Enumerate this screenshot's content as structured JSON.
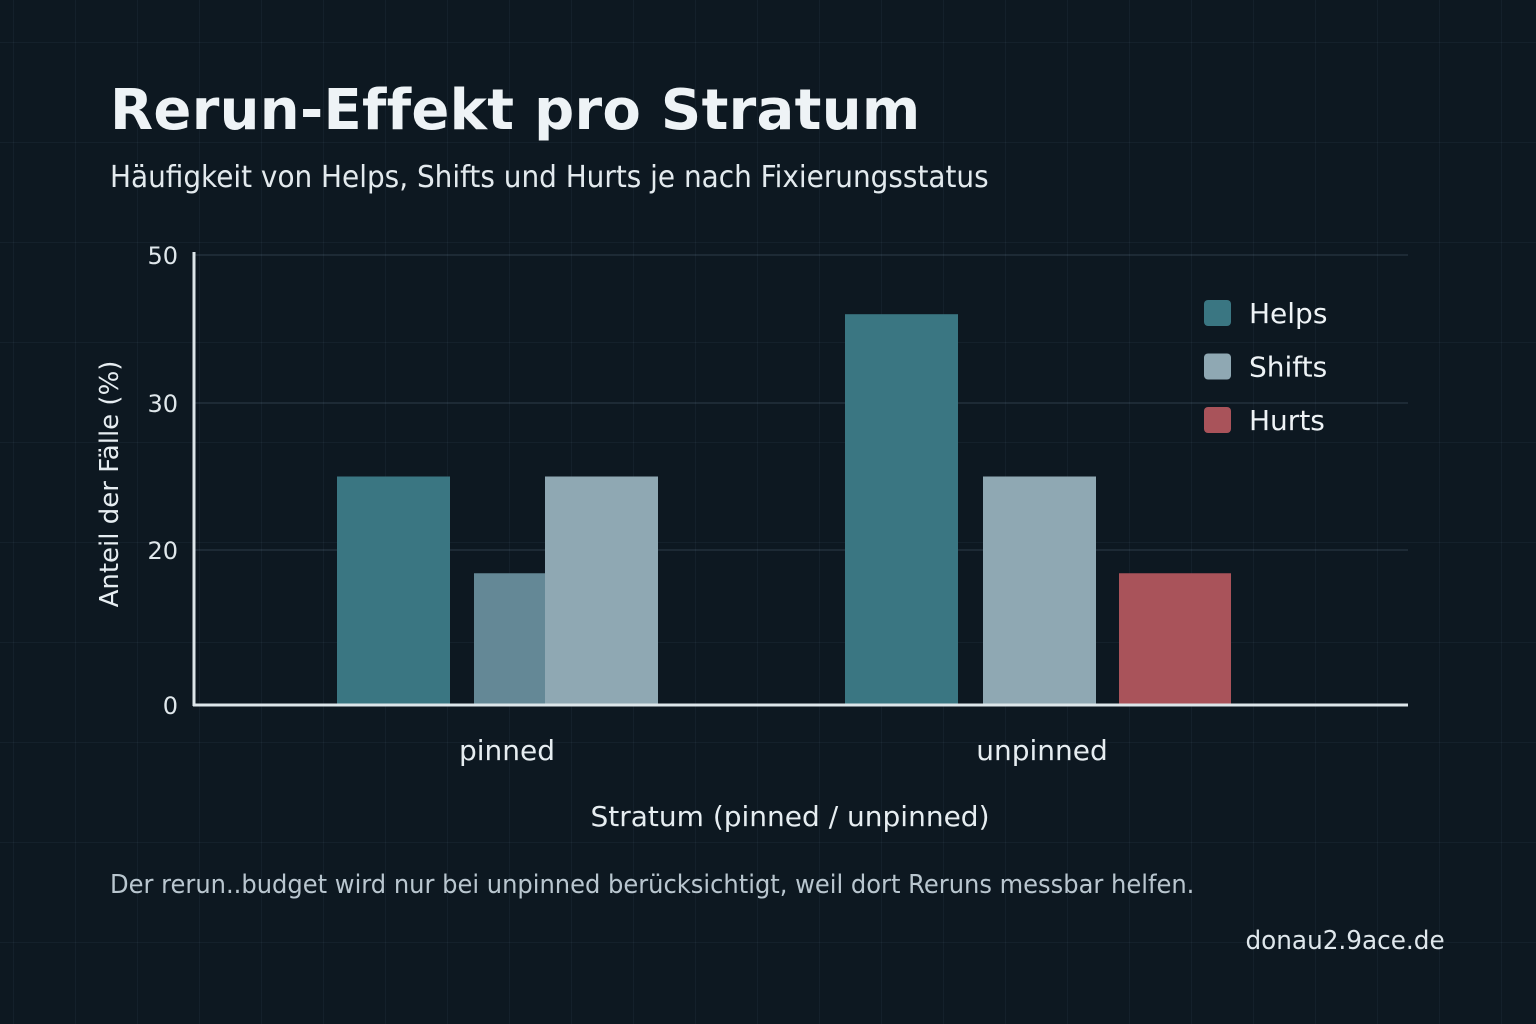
{
  "page": {
    "title": "Rerun-Effekt pro Stratum",
    "subtitle": "Häufigkeit von Helps, Shifts und Hurts je nach Fixierungsstatus",
    "note": "Der rerun..budget wird nur bei unpinned berücksichtigt, weil dort Reruns messbar helfen.",
    "source": "donau2.9ace.de"
  },
  "chart_data": {
    "type": "bar",
    "title": "Rerun-Effekt pro Stratum",
    "subtitle": "Häufigkeit von Helps, Shifts und Hurts je nach Fixierungsstatus",
    "xlabel": "Stratum (pinned / unpinned)",
    "ylabel": "Anteil der Fälle (%)",
    "categories": [
      "pinned",
      "unpinned"
    ],
    "yticks": [
      0,
      20,
      30,
      50
    ],
    "ytick_labels": [
      "0",
      "20",
      "30",
      "50"
    ],
    "ylim": [
      0,
      50
    ],
    "grid": true,
    "legend_position": "top-right",
    "series": [
      {
        "name": "Helps",
        "color": "#3a7682",
        "values": [
          25,
          42
        ]
      },
      {
        "name": "Shifts",
        "color": "#8fa8b3",
        "values": [
          25,
          25
        ]
      },
      {
        "name": "Hurts",
        "color": "#a9535a",
        "values": [
          17,
          17
        ]
      }
    ],
    "overlap_mark_colors": {
      "pinned_hurts": "#648896"
    },
    "axis_color": "#dde6ea"
  }
}
